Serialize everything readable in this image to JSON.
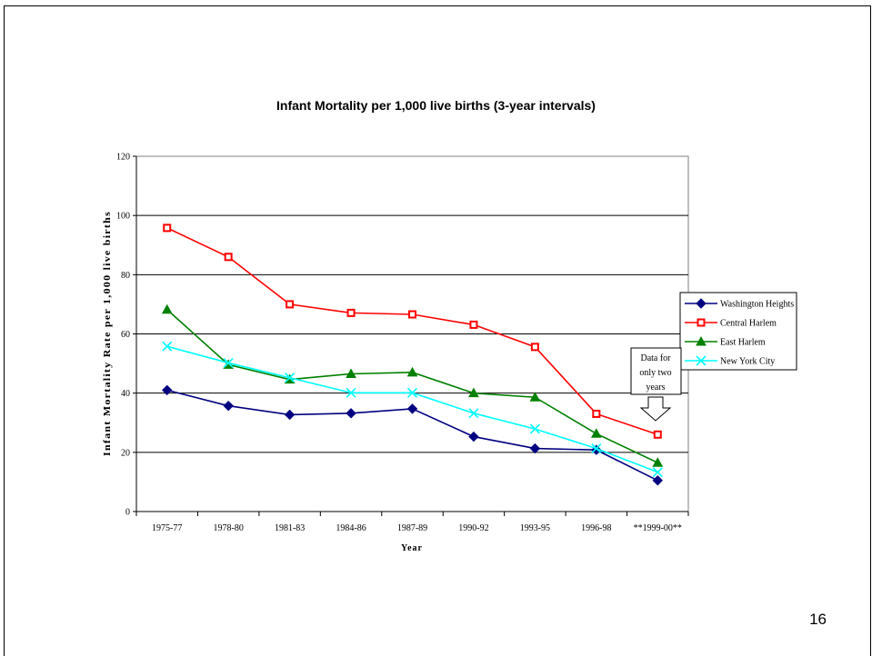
{
  "page": {
    "number": "16"
  },
  "colors": {
    "washington_heights": "#000080",
    "central_harlem": "#ff0000",
    "east_harlem": "#008000",
    "new_york_city": "#00ffff"
  },
  "chart_data": {
    "type": "line",
    "title": "Infant Mortality per 1,000 live births (3-year intervals)",
    "xlabel": "Year",
    "ylabel": "Infant Mortality Rate per 1,000 live births",
    "ylim": [
      0,
      120
    ],
    "yticks": [
      0,
      20,
      40,
      60,
      80,
      100,
      120
    ],
    "grid": "horizontal major lines",
    "legend_position": "right",
    "categories": [
      "1975-77",
      "1978-80",
      "1981-83",
      "1984-86",
      "1987-89",
      "1990-92",
      "1993-95",
      "1996-98",
      "**1999-00**"
    ],
    "series": [
      {
        "name": "Washington Heights",
        "marker": "diamond",
        "color": "#000080",
        "values": [
          41,
          35.7,
          32.7,
          33.2,
          34.7,
          25.3,
          21.3,
          20.8,
          10.5
        ]
      },
      {
        "name": "Central Harlem",
        "marker": "square",
        "color": "#ff0000",
        "values": [
          95.8,
          86,
          70,
          67.1,
          66.6,
          63.1,
          55.6,
          33,
          26
        ]
      },
      {
        "name": "East Harlem",
        "marker": "triangle",
        "color": "#008000",
        "values": [
          68.2,
          49.6,
          44.6,
          46.5,
          47,
          40,
          38.6,
          26.3,
          16.5
        ]
      },
      {
        "name": "New York City",
        "marker": "x",
        "color": "#00ffff",
        "values": [
          55.8,
          50.2,
          45.2,
          40.1,
          40.1,
          33.2,
          27.9,
          21.3,
          13.3
        ]
      }
    ],
    "annotation": {
      "lines": [
        "Data for",
        "only two",
        "years"
      ]
    }
  }
}
